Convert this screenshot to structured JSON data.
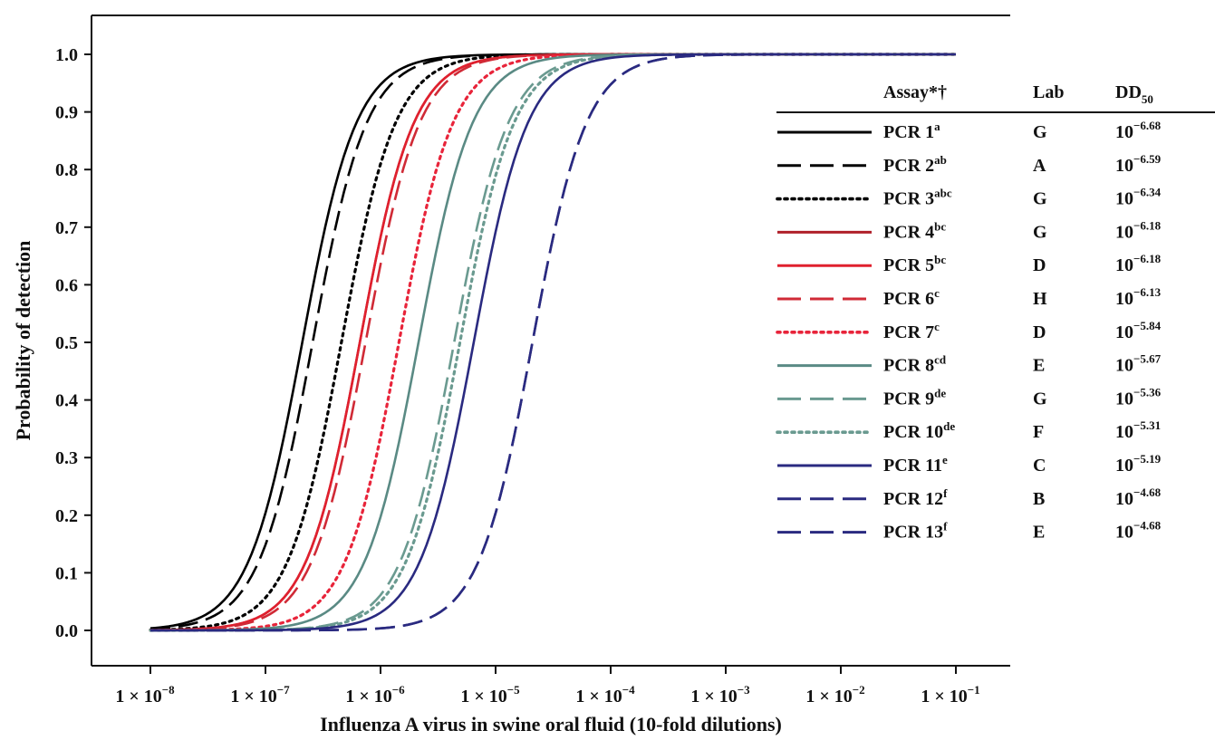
{
  "chart_data": {
    "type": "line",
    "title": "",
    "xlabel": "Influenza A virus in swine oral fluid (10-fold dilutions)",
    "ylabel": "Probability of detection",
    "x_scale": "log10",
    "xlim": [
      1e-08,
      0.1
    ],
    "ylim": [
      0.0,
      1.0
    ],
    "x_ticks": [
      {
        "mant": "1 × 10",
        "exp": "−8"
      },
      {
        "mant": "1 × 10",
        "exp": "−7"
      },
      {
        "mant": "1 × 10",
        "exp": "−6"
      },
      {
        "mant": "1 × 10",
        "exp": "−5"
      },
      {
        "mant": "1 × 10",
        "exp": "−4"
      },
      {
        "mant": "1 × 10",
        "exp": "−3"
      },
      {
        "mant": "1 × 10",
        "exp": "−2"
      },
      {
        "mant": "1 × 10",
        "exp": "−1"
      }
    ],
    "y_ticks": [
      "0.0",
      "0.1",
      "0.2",
      "0.3",
      "0.4",
      "0.5",
      "0.6",
      "0.7",
      "0.8",
      "0.9",
      "1.0"
    ],
    "grid": false,
    "legend": {
      "placement": "right",
      "headers": {
        "assay": "Assay*†",
        "lab": "Lab",
        "dd50_base": "DD",
        "dd50_sub": "50"
      },
      "dd50_base": "10"
    },
    "series": [
      {
        "name": "PCR 1",
        "sup": "a",
        "lab": "G",
        "dd50_exp": "−6.68",
        "log10_dd50": -6.68,
        "color": "#000000",
        "dash": "solid"
      },
      {
        "name": "PCR 2",
        "sup": "ab",
        "lab": "A",
        "dd50_exp": "−6.59",
        "log10_dd50": -6.59,
        "color": "#000000",
        "dash": "long"
      },
      {
        "name": "PCR 3",
        "sup": "abc",
        "lab": "G",
        "dd50_exp": "−6.34",
        "log10_dd50": -6.34,
        "color": "#000000",
        "dash": "dot"
      },
      {
        "name": "PCR 4",
        "sup": "bc",
        "lab": "G",
        "dd50_exp": "−6.18",
        "log10_dd50": -6.18,
        "color": "#b0202a",
        "dash": "solid"
      },
      {
        "name": "PCR 5",
        "sup": "bc",
        "lab": "D",
        "dd50_exp": "−6.18",
        "log10_dd50": -6.18,
        "color": "#e0202e",
        "dash": "solid"
      },
      {
        "name": "PCR 6",
        "sup": "c",
        "lab": "H",
        "dd50_exp": "−6.13",
        "log10_dd50": -6.13,
        "color": "#d02a36",
        "dash": "long"
      },
      {
        "name": "PCR 7",
        "sup": "c",
        "lab": "D",
        "dd50_exp": "−5.84",
        "log10_dd50": -5.84,
        "color": "#e8243a",
        "dash": "dot"
      },
      {
        "name": "PCR 8",
        "sup": "cd",
        "lab": "E",
        "dd50_exp": "−5.67",
        "log10_dd50": -5.67,
        "color": "#5a8a84",
        "dash": "solid"
      },
      {
        "name": "PCR 9",
        "sup": "de",
        "lab": "G",
        "dd50_exp": "−5.36",
        "log10_dd50": -5.36,
        "color": "#6a9a90",
        "dash": "long"
      },
      {
        "name": "PCR 10",
        "sup": "de",
        "lab": "F",
        "dd50_exp": "−5.31",
        "log10_dd50": -5.31,
        "color": "#6a9a90",
        "dash": "dot"
      },
      {
        "name": "PCR 11",
        "sup": "e",
        "lab": "C",
        "dd50_exp": "−5.19",
        "log10_dd50": -5.19,
        "color": "#2a2a80",
        "dash": "solid"
      },
      {
        "name": "PCR 12",
        "sup": "f",
        "lab": "B",
        "dd50_exp": "−4.68",
        "log10_dd50": -4.68,
        "color": "#2a2a80",
        "dash": "long"
      },
      {
        "name": "PCR 13",
        "sup": "f",
        "lab": "E",
        "dd50_exp": "−4.68",
        "log10_dd50": -4.68,
        "color": "#2a2a80",
        "dash": "long"
      }
    ]
  }
}
